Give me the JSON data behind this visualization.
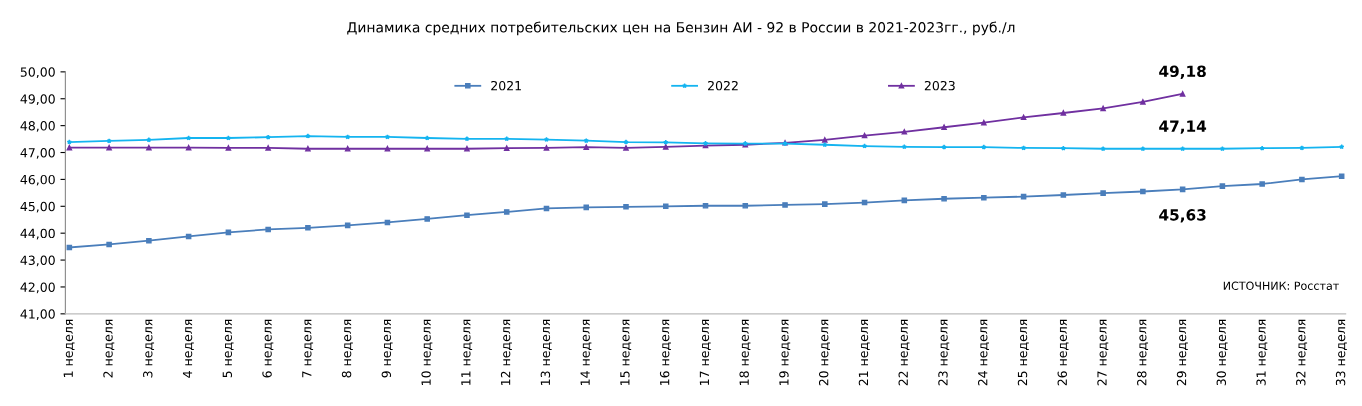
{
  "chart_data": {
    "type": "line",
    "title": "Динамика средних потребительских цен на Бензин АИ - 92 в России в 2021-2023гг., руб./л",
    "categories": [
      "1 неделя",
      "2 неделя",
      "3 неделя",
      "4 неделя",
      "5 неделя",
      "6 неделя",
      "7 неделя",
      "8 неделя",
      "9 неделя",
      "10 неделя",
      "11 неделя",
      "12 неделя",
      "13 неделя",
      "14 неделя",
      "15 неделя",
      "16 неделя",
      "17 неделя",
      "18 неделя",
      "19 неделя",
      "20 неделя",
      "21 неделя",
      "22 неделя",
      "23 неделя",
      "24 неделя",
      "25 неделя",
      "26 неделя",
      "27 неделя",
      "28 неделя",
      "29 неделя",
      "30 неделя",
      "31 неделя",
      "32 неделя",
      "33 неделя"
    ],
    "series": [
      {
        "name": "2021",
        "color": "#4a7ebb",
        "marker": "square",
        "values": [
          43.47,
          43.58,
          43.72,
          43.88,
          44.03,
          44.14,
          44.2,
          44.29,
          44.4,
          44.53,
          44.67,
          44.79,
          44.92,
          44.96,
          44.98,
          45.0,
          45.02,
          45.02,
          45.05,
          45.08,
          45.14,
          45.22,
          45.28,
          45.32,
          45.36,
          45.42,
          45.49,
          45.55,
          45.63,
          45.75,
          45.83,
          46.0,
          46.12
        ],
        "value_labels": [
          null,
          null,
          null,
          null,
          null,
          null,
          null,
          null,
          null,
          null,
          null,
          null,
          null,
          null,
          null,
          null,
          null,
          null,
          null,
          null,
          null,
          null,
          null,
          null,
          null,
          null,
          null,
          null,
          "45,63",
          null,
          null,
          null,
          null
        ]
      },
      {
        "name": "2022",
        "color": "#14b4f0",
        "marker": "star",
        "values": [
          47.39,
          47.43,
          47.47,
          47.54,
          47.54,
          47.57,
          47.61,
          47.58,
          47.58,
          47.54,
          47.51,
          47.51,
          47.48,
          47.44,
          47.39,
          47.38,
          47.34,
          47.33,
          47.33,
          47.29,
          47.24,
          47.21,
          47.2,
          47.2,
          47.17,
          47.16,
          47.14,
          47.14,
          47.14,
          47.14,
          47.16,
          47.17,
          47.21
        ],
        "value_labels": [
          null,
          null,
          null,
          null,
          null,
          null,
          null,
          null,
          null,
          null,
          null,
          null,
          null,
          null,
          null,
          null,
          null,
          null,
          null,
          null,
          null,
          null,
          null,
          null,
          null,
          null,
          null,
          null,
          "47,14",
          null,
          null,
          null,
          null
        ]
      },
      {
        "name": "2023",
        "color": "#7030a0",
        "marker": "triangle",
        "values": [
          47.18,
          47.18,
          47.18,
          47.18,
          47.17,
          47.17,
          47.14,
          47.14,
          47.14,
          47.14,
          47.14,
          47.16,
          47.17,
          47.2,
          47.17,
          47.21,
          47.26,
          47.29,
          47.36,
          47.47,
          47.63,
          47.77,
          47.94,
          48.11,
          48.31,
          48.47,
          48.64,
          48.88,
          49.18,
          null,
          null,
          null,
          null
        ],
        "value_labels": [
          null,
          null,
          null,
          null,
          null,
          null,
          null,
          null,
          null,
          null,
          null,
          null,
          null,
          null,
          null,
          null,
          null,
          null,
          null,
          null,
          null,
          null,
          null,
          null,
          null,
          null,
          null,
          null,
          "49,18",
          null,
          null,
          null,
          null
        ]
      }
    ],
    "ylim": [
      41,
      50
    ],
    "yticks": [
      {
        "value": 41,
        "label": "41,00"
      },
      {
        "value": 42,
        "label": "42,00"
      },
      {
        "value": 43,
        "label": "43,00"
      },
      {
        "value": 44,
        "label": "44,00"
      },
      {
        "value": 45,
        "label": "45,00"
      },
      {
        "value": 46,
        "label": "46,00"
      },
      {
        "value": 47,
        "label": "47,00"
      },
      {
        "value": 48,
        "label": "48,00"
      },
      {
        "value": 49,
        "label": "49,00"
      },
      {
        "value": 50,
        "label": "50,00"
      }
    ],
    "grid": false,
    "legend": "top",
    "annotations": [
      "ИСТОЧНИК: Росстат"
    ]
  }
}
